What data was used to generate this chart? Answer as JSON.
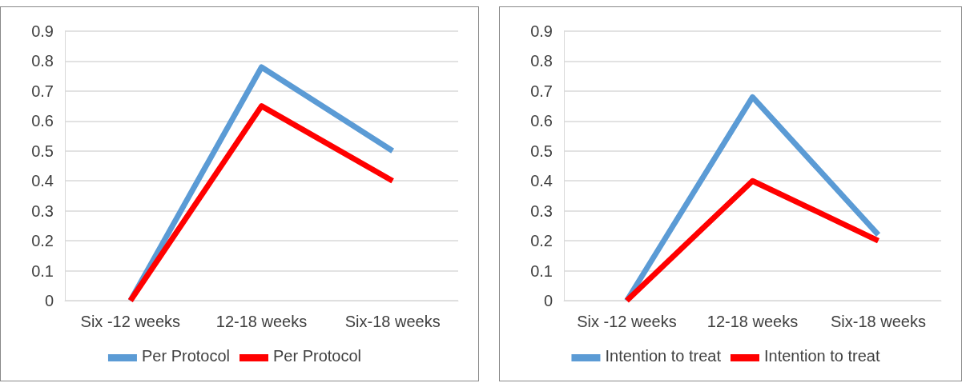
{
  "chart_data": [
    {
      "type": "line",
      "categories": [
        "Six -12 weeks",
        "12-18 weeks",
        "Six-18 weeks"
      ],
      "ylim": [
        0,
        0.9
      ],
      "yticks": [
        0,
        0.1,
        0.2,
        0.3,
        0.4,
        0.5,
        0.6,
        0.7,
        0.8,
        0.9
      ],
      "grid": "y",
      "legend": "bottom",
      "marker": "none",
      "series": [
        {
          "name": "Per Protocol",
          "color": "#5b9bd5",
          "values": [
            0,
            0.78,
            0.5
          ]
        },
        {
          "name": "Per Protocol",
          "color": "#ff0000",
          "values": [
            0,
            0.65,
            0.4
          ]
        }
      ]
    },
    {
      "type": "line",
      "categories": [
        "Six -12 weeks",
        "12-18 weeks",
        "Six-18 weeks"
      ],
      "ylim": [
        0,
        0.9
      ],
      "yticks": [
        0,
        0.1,
        0.2,
        0.3,
        0.4,
        0.5,
        0.6,
        0.7,
        0.8,
        0.9
      ],
      "grid": "y",
      "legend": "bottom",
      "marker": "none",
      "series": [
        {
          "name": "Intention to treat",
          "color": "#5b9bd5",
          "values": [
            0,
            0.68,
            0.22
          ]
        },
        {
          "name": "Intention to treat",
          "color": "#ff0000",
          "values": [
            0,
            0.4,
            0.2
          ]
        }
      ]
    }
  ]
}
